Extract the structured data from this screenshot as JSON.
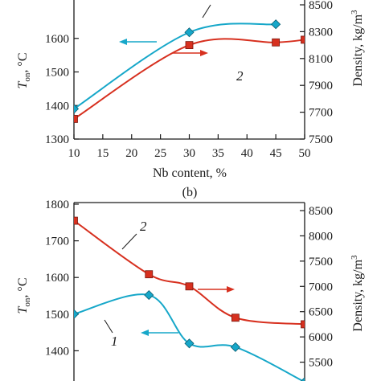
{
  "colors": {
    "blue": "#16a7c9",
    "red": "#d7301f",
    "axis": "#1a1a1a"
  },
  "chart_data": [
    {
      "type": "line",
      "panel": "a",
      "xlabel": "Nb content, %",
      "ylabel_left_main": "T",
      "ylabel_left_sub": "on",
      "ylabel_left_unit": ", °C",
      "ylabel_right_main": "Density, kg/m",
      "ylabel_right_sup": "3",
      "xlim": [
        10,
        50
      ],
      "ylim_left": [
        1300,
        1700
      ],
      "ylim_right": [
        7500,
        8500
      ],
      "x_ticks": [
        "10",
        "15",
        "20",
        "25",
        "30",
        "35",
        "40",
        "45",
        "50"
      ],
      "y_ticks_left": [
        "1300",
        "1400",
        "1500",
        "1600"
      ],
      "y_ticks_right": [
        "7500",
        "7700",
        "7900",
        "8100",
        "8300",
        "8500"
      ],
      "series": [
        {
          "name": "1",
          "axis": "left",
          "color": "blue",
          "marker": "diamond",
          "x": [
            10,
            30,
            45
          ],
          "y": [
            1390,
            1618,
            1642
          ]
        },
        {
          "name": "2",
          "axis": "right",
          "color": "red",
          "marker": "square",
          "x": [
            10,
            30,
            45,
            50
          ],
          "y": [
            7650,
            8200,
            8220,
            8240
          ]
        }
      ]
    },
    {
      "type": "line",
      "panel": "b",
      "panel_caption": "(b)",
      "ylabel_left_main": "T",
      "ylabel_left_sub": "on",
      "ylabel_left_unit": ", °C",
      "ylabel_right_main": "Density, kg/m",
      "ylabel_right_sup": "3",
      "xlim": [
        10,
        50
      ],
      "ylim_left": [
        1300,
        1800
      ],
      "ylim_right": [
        5000,
        8500
      ],
      "y_ticks_left": [
        "1400",
        "1500",
        "1600",
        "1700",
        "1800"
      ],
      "y_ticks_right": [
        "5500",
        "6000",
        "6500",
        "7000",
        "7500",
        "8000",
        "8500"
      ],
      "series": [
        {
          "name": "1",
          "axis": "left",
          "color": "blue",
          "marker": "diamond",
          "x": [
            10,
            23,
            30,
            38,
            50
          ],
          "y": [
            1500,
            1552,
            1420,
            1410,
            1315
          ]
        },
        {
          "name": "2",
          "axis": "right",
          "color": "red",
          "marker": "square",
          "x": [
            10,
            23,
            30,
            38,
            50
          ],
          "y": [
            8300,
            7240,
            7000,
            6380,
            6250
          ]
        }
      ]
    }
  ]
}
